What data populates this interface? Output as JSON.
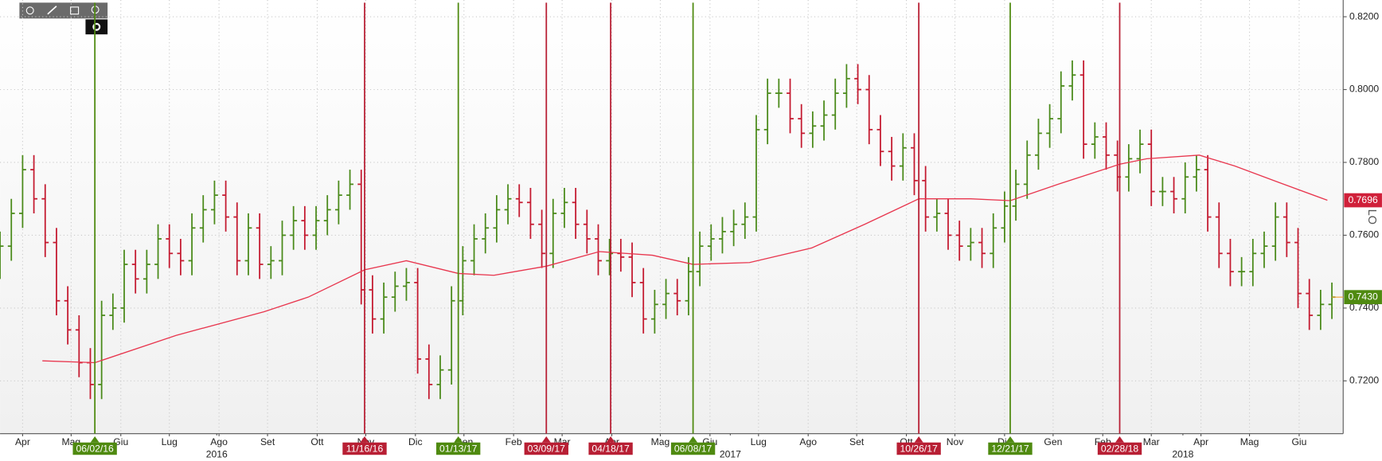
{
  "chart_data": {
    "type": "ohlc",
    "xlim": [
      0,
      119
    ],
    "ylim": [
      0.7055,
      0.8246
    ],
    "grid": true,
    "y_label": "LO",
    "up_color": "#4a8a1a",
    "down_color": "#c41a30",
    "xticks": [
      {
        "value": 2,
        "label": "Apr"
      },
      {
        "value": 6.3,
        "label": "Mag"
      },
      {
        "value": 10.7,
        "label": "Giu"
      },
      {
        "value": 15,
        "label": "Lug"
      },
      {
        "value": 19.4,
        "label": "Ago"
      },
      {
        "value": 23.7,
        "label": "Set"
      },
      {
        "value": 28.1,
        "label": "Ott"
      },
      {
        "value": 32.4,
        "label": "Nov"
      },
      {
        "value": 36.8,
        "label": "Dic"
      },
      {
        "value": 41.1,
        "label": "Gen"
      },
      {
        "value": 45.5,
        "label": "Feb"
      },
      {
        "value": 49.8,
        "label": "Mar"
      },
      {
        "value": 54.2,
        "label": "Apr"
      },
      {
        "value": 58.5,
        "label": "Mag"
      },
      {
        "value": 62.9,
        "label": "Giu"
      },
      {
        "value": 67.2,
        "label": "Lug"
      },
      {
        "value": 71.6,
        "label": "Ago"
      },
      {
        "value": 75.9,
        "label": "Set"
      },
      {
        "value": 80.3,
        "label": "Ott"
      },
      {
        "value": 84.6,
        "label": "Nov"
      },
      {
        "value": 89,
        "label": "Dic"
      },
      {
        "value": 93.3,
        "label": "Gen"
      },
      {
        "value": 97.7,
        "label": "Feb"
      },
      {
        "value": 102,
        "label": "Mar"
      },
      {
        "value": 106.4,
        "label": "Apr"
      },
      {
        "value": 110.7,
        "label": "Mag"
      },
      {
        "value": 115.1,
        "label": "Giu"
      }
    ],
    "year_ticks": [
      {
        "value": 19.2,
        "label": "2016"
      },
      {
        "value": 64.7,
        "label": "2017"
      },
      {
        "value": 104.8,
        "label": "2018"
      }
    ],
    "yticks": [
      {
        "value": 0.72,
        "label": "0.7200"
      },
      {
        "value": 0.74,
        "label": "0.7400"
      },
      {
        "value": 0.76,
        "label": "0.7600"
      },
      {
        "value": 0.78,
        "label": "0.7800"
      },
      {
        "value": 0.8,
        "label": "0.8000"
      },
      {
        "value": 0.82,
        "label": "0.8200"
      }
    ],
    "open": [
      0.752,
      0.757,
      0.766,
      0.778,
      0.77,
      0.758,
      0.742,
      0.734,
      0.725,
      0.719,
      0.738,
      0.74,
      0.752,
      0.748,
      0.752,
      0.759,
      0.755,
      0.753,
      0.762,
      0.767,
      0.771,
      0.765,
      0.753,
      0.762,
      0.752,
      0.753,
      0.76,
      0.764,
      0.76,
      0.764,
      0.767,
      0.771,
      0.774,
      0.745,
      0.737,
      0.743,
      0.746,
      0.747,
      0.726,
      0.719,
      0.723,
      0.742,
      0.753,
      0.759,
      0.762,
      0.767,
      0.77,
      0.769,
      0.763,
      0.755,
      0.766,
      0.769,
      0.763,
      0.759,
      0.753,
      0.755,
      0.754,
      0.747,
      0.737,
      0.741,
      0.744,
      0.742,
      0.75,
      0.757,
      0.759,
      0.761,
      0.763,
      0.765,
      0.789,
      0.799,
      0.799,
      0.792,
      0.788,
      0.79,
      0.793,
      0.799,
      0.803,
      0.8,
      0.789,
      0.783,
      0.779,
      0.784,
      0.775,
      0.765,
      0.766,
      0.76,
      0.757,
      0.758,
      0.755,
      0.762,
      0.768,
      0.774,
      0.782,
      0.788,
      0.792,
      0.801,
      0.804,
      0.785,
      0.787,
      0.782,
      0.776,
      0.781,
      0.785,
      0.772,
      0.772,
      0.77,
      0.776,
      0.778,
      0.765,
      0.755,
      0.75,
      0.75,
      0.755,
      0.757,
      0.765,
      0.758,
      0.744,
      0.738,
      0.741
    ],
    "high": [
      0.761,
      0.77,
      0.782,
      0.782,
      0.774,
      0.762,
      0.746,
      0.738,
      0.729,
      0.742,
      0.744,
      0.756,
      0.756,
      0.756,
      0.763,
      0.763,
      0.759,
      0.766,
      0.771,
      0.775,
      0.775,
      0.769,
      0.766,
      0.766,
      0.757,
      0.764,
      0.768,
      0.768,
      0.768,
      0.771,
      0.775,
      0.778,
      0.778,
      0.749,
      0.747,
      0.75,
      0.751,
      0.751,
      0.73,
      0.727,
      0.746,
      0.757,
      0.763,
      0.766,
      0.771,
      0.774,
      0.774,
      0.773,
      0.767,
      0.77,
      0.773,
      0.773,
      0.767,
      0.763,
      0.759,
      0.759,
      0.758,
      0.751,
      0.745,
      0.748,
      0.748,
      0.754,
      0.761,
      0.763,
      0.765,
      0.767,
      0.769,
      0.793,
      0.803,
      0.803,
      0.803,
      0.796,
      0.794,
      0.797,
      0.803,
      0.807,
      0.807,
      0.804,
      0.793,
      0.787,
      0.788,
      0.788,
      0.779,
      0.77,
      0.77,
      0.764,
      0.762,
      0.762,
      0.766,
      0.772,
      0.778,
      0.786,
      0.792,
      0.796,
      0.805,
      0.808,
      0.808,
      0.791,
      0.791,
      0.786,
      0.785,
      0.789,
      0.789,
      0.776,
      0.776,
      0.78,
      0.782,
      0.782,
      0.769,
      0.759,
      0.754,
      0.759,
      0.761,
      0.769,
      0.769,
      0.762,
      0.748,
      0.745,
      0.747
    ],
    "low": [
      0.748,
      0.753,
      0.762,
      0.766,
      0.754,
      0.738,
      0.73,
      0.721,
      0.715,
      0.715,
      0.734,
      0.736,
      0.744,
      0.744,
      0.748,
      0.751,
      0.749,
      0.749,
      0.758,
      0.763,
      0.761,
      0.749,
      0.749,
      0.748,
      0.748,
      0.749,
      0.756,
      0.756,
      0.756,
      0.76,
      0.763,
      0.767,
      0.741,
      0.733,
      0.733,
      0.739,
      0.742,
      0.722,
      0.715,
      0.715,
      0.719,
      0.738,
      0.749,
      0.755,
      0.758,
      0.763,
      0.765,
      0.759,
      0.751,
      0.751,
      0.762,
      0.759,
      0.755,
      0.749,
      0.749,
      0.75,
      0.743,
      0.733,
      0.733,
      0.737,
      0.738,
      0.738,
      0.746,
      0.753,
      0.755,
      0.757,
      0.759,
      0.761,
      0.785,
      0.795,
      0.788,
      0.784,
      0.784,
      0.786,
      0.789,
      0.795,
      0.796,
      0.785,
      0.779,
      0.775,
      0.775,
      0.771,
      0.761,
      0.761,
      0.756,
      0.753,
      0.753,
      0.751,
      0.751,
      0.758,
      0.764,
      0.77,
      0.778,
      0.784,
      0.788,
      0.797,
      0.781,
      0.781,
      0.778,
      0.772,
      0.772,
      0.777,
      0.768,
      0.768,
      0.766,
      0.766,
      0.772,
      0.761,
      0.751,
      0.746,
      0.746,
      0.746,
      0.751,
      0.753,
      0.754,
      0.74,
      0.734,
      0.734,
      0.737
    ],
    "close": [
      0.757,
      0.766,
      0.778,
      0.77,
      0.758,
      0.742,
      0.734,
      0.725,
      0.719,
      0.738,
      0.74,
      0.752,
      0.748,
      0.752,
      0.759,
      0.755,
      0.753,
      0.762,
      0.767,
      0.771,
      0.765,
      0.753,
      0.762,
      0.752,
      0.753,
      0.76,
      0.764,
      0.76,
      0.764,
      0.767,
      0.771,
      0.774,
      0.745,
      0.737,
      0.743,
      0.746,
      0.747,
      0.726,
      0.719,
      0.723,
      0.742,
      0.753,
      0.759,
      0.762,
      0.767,
      0.77,
      0.769,
      0.763,
      0.755,
      0.766,
      0.769,
      0.763,
      0.759,
      0.753,
      0.755,
      0.754,
      0.747,
      0.737,
      0.741,
      0.744,
      0.742,
      0.75,
      0.757,
      0.759,
      0.761,
      0.763,
      0.765,
      0.789,
      0.799,
      0.799,
      0.792,
      0.788,
      0.79,
      0.793,
      0.799,
      0.803,
      0.8,
      0.789,
      0.783,
      0.779,
      0.784,
      0.775,
      0.765,
      0.766,
      0.76,
      0.757,
      0.758,
      0.755,
      0.762,
      0.768,
      0.774,
      0.782,
      0.788,
      0.792,
      0.801,
      0.804,
      0.785,
      0.787,
      0.782,
      0.776,
      0.781,
      0.785,
      0.772,
      0.772,
      0.77,
      0.776,
      0.778,
      0.765,
      0.755,
      0.75,
      0.75,
      0.755,
      0.757,
      0.765,
      0.758,
      0.744,
      0.738,
      0.741,
      0.743
    ],
    "moving_average": {
      "color": "#e8364e",
      "x": [
        3.75,
        8.4,
        15.6,
        23.4,
        27.3,
        32.3,
        36,
        40.6,
        43.75,
        48.4,
        53.1,
        57.8,
        61.4,
        66.4,
        71.9,
        76.6,
        81.4,
        86,
        89.5,
        93.75,
        99.2,
        101.6,
        106.25,
        109.4,
        113.3,
        117.6
      ],
      "values": [
        0.7255,
        0.725,
        0.7325,
        0.739,
        0.743,
        0.7505,
        0.753,
        0.7495,
        0.749,
        0.7515,
        0.7555,
        0.7545,
        0.752,
        0.7525,
        0.7565,
        0.763,
        0.77,
        0.77,
        0.7695,
        0.774,
        0.7795,
        0.781,
        0.782,
        0.779,
        0.7745,
        0.7696
      ]
    },
    "price_labels": [
      {
        "value": 0.7696,
        "label": "0.7696",
        "color": "#d0203a"
      },
      {
        "value": 0.743,
        "label": "0.7430",
        "color": "#4f8a10"
      }
    ],
    "events": [
      {
        "x": 8.4,
        "label": "06/02/16",
        "color": "#4f8a10"
      },
      {
        "x": 32.3,
        "label": "11/16/16",
        "color": "#b81f34"
      },
      {
        "x": 40.6,
        "label": "01/13/17",
        "color": "#4f8a10"
      },
      {
        "x": 48.4,
        "label": "03/09/17",
        "color": "#b81f34"
      },
      {
        "x": 54.1,
        "label": "04/18/17",
        "color": "#b81f34"
      },
      {
        "x": 61.4,
        "label": "06/08/17",
        "color": "#4f8a10"
      },
      {
        "x": 81.4,
        "label": "10/26/17",
        "color": "#b81f34"
      },
      {
        "x": 89.5,
        "label": "12/21/17",
        "color": "#4f8a10"
      },
      {
        "x": 99.2,
        "label": "02/28/18",
        "color": "#b81f34"
      }
    ]
  }
}
